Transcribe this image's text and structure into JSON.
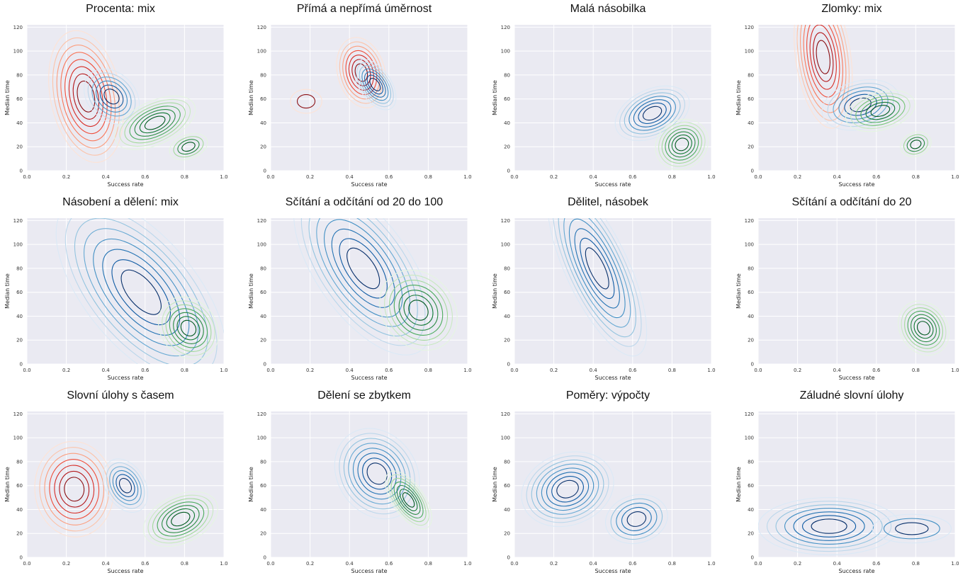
{
  "chart_data": [
    {
      "type": "contour",
      "title": "Procenta: mix",
      "xlabel": "Success rate",
      "ylabel": "Median time",
      "xlim": [
        0,
        1
      ],
      "ylim": [
        0,
        122
      ],
      "x_ticks": [
        "0.0",
        "0.2",
        "0.4",
        "0.6",
        "0.8",
        "1.0"
      ],
      "y_ticks": [
        "0",
        "20",
        "40",
        "60",
        "80",
        "100",
        "120"
      ],
      "grid": true,
      "series": [
        {
          "palette": "reds",
          "peaks": [
            {
              "x": 0.3,
              "y": 62,
              "sx": 0.09,
              "sy": 28,
              "rot": -12,
              "levels": 8
            }
          ]
        },
        {
          "palette": "blues",
          "peaks": [
            {
              "x": 0.43,
              "y": 62,
              "sx": 0.06,
              "sy": 13,
              "rot": -45,
              "levels": 6
            }
          ]
        },
        {
          "palette": "greens",
          "peaks": [
            {
              "x": 0.65,
              "y": 40,
              "sx": 0.11,
              "sy": 9,
              "rot": -25,
              "levels": 7
            },
            {
              "x": 0.82,
              "y": 20,
              "sx": 0.05,
              "sy": 5,
              "rot": -20,
              "levels": 4
            }
          ]
        }
      ]
    },
    {
      "type": "contour",
      "title": "Přímá a nepřímá úměrnost",
      "xlabel": "Success rate",
      "ylabel": "Median time",
      "xlim": [
        0,
        1
      ],
      "ylim": [
        0,
        122
      ],
      "x_ticks": [
        "0.0",
        "0.2",
        "0.4",
        "0.6",
        "0.8",
        "1.0"
      ],
      "y_ticks": [
        "0",
        "20",
        "40",
        "60",
        "80",
        "100",
        "120"
      ],
      "grid": true,
      "series": [
        {
          "palette": "reds",
          "peaks": [
            {
              "x": 0.46,
              "y": 82,
              "sx": 0.06,
              "sy": 15,
              "rot": -15,
              "levels": 7
            },
            {
              "x": 0.18,
              "y": 58,
              "sx": 0.04,
              "sy": 5,
              "rot": 0,
              "levels": 2
            }
          ]
        },
        {
          "palette": "blues",
          "peaks": [
            {
              "x": 0.53,
              "y": 72,
              "sx": 0.04,
              "sy": 12,
              "rot": -35,
              "levels": 7
            }
          ]
        }
      ]
    },
    {
      "type": "contour",
      "title": "Malá násobilka",
      "xlabel": "Success rate",
      "ylabel": "Median time",
      "xlim": [
        0,
        1
      ],
      "ylim": [
        0,
        122
      ],
      "x_ticks": [
        "0.0",
        "0.2",
        "0.4",
        "0.6",
        "0.8",
        "1.0"
      ],
      "y_ticks": [
        "0",
        "20",
        "40",
        "60",
        "80",
        "100",
        "120"
      ],
      "grid": true,
      "series": [
        {
          "palette": "blues",
          "peaks": [
            {
              "x": 0.7,
              "y": 48,
              "sx": 0.1,
              "sy": 10,
              "rot": -25,
              "levels": 7
            }
          ]
        },
        {
          "palette": "greens",
          "peaks": [
            {
              "x": 0.85,
              "y": 22,
              "sx": 0.07,
              "sy": 10,
              "rot": -35,
              "levels": 7
            }
          ]
        }
      ]
    },
    {
      "type": "contour",
      "title": "Zlomky: mix",
      "xlabel": "Success rate",
      "ylabel": "Median time",
      "xlim": [
        0,
        1
      ],
      "ylim": [
        0,
        122
      ],
      "x_ticks": [
        "0.0",
        "0.2",
        "0.4",
        "0.6",
        "0.8",
        "1.0"
      ],
      "y_ticks": [
        "0",
        "20",
        "40",
        "60",
        "80",
        "100",
        "120"
      ],
      "grid": true,
      "series": [
        {
          "palette": "reds",
          "peaks": [
            {
              "x": 0.33,
              "y": 95,
              "sx": 0.07,
              "sy": 30,
              "rot": -8,
              "levels": 8
            }
          ]
        },
        {
          "palette": "blues",
          "peaks": [
            {
              "x": 0.52,
              "y": 55,
              "sx": 0.1,
              "sy": 10,
              "rot": -15,
              "levels": 6
            }
          ]
        },
        {
          "palette": "greens",
          "peaks": [
            {
              "x": 0.62,
              "y": 50,
              "sx": 0.09,
              "sy": 8,
              "rot": -15,
              "levels": 6
            },
            {
              "x": 0.8,
              "y": 22,
              "sx": 0.04,
              "sy": 5,
              "rot": -20,
              "levels": 4
            }
          ]
        }
      ]
    },
    {
      "type": "contour",
      "title": "Násobení a dělení: mix",
      "xlabel": "Success rate",
      "ylabel": "Median time",
      "xlim": [
        0,
        1
      ],
      "ylim": [
        0,
        122
      ],
      "x_ticks": [
        "0.0",
        "0.2",
        "0.4",
        "0.6",
        "0.8",
        "1.0"
      ],
      "y_ticks": [
        "0",
        "20",
        "40",
        "60",
        "80",
        "100",
        "120"
      ],
      "grid": true,
      "series": [
        {
          "palette": "blues",
          "peaks": [
            {
              "x": 0.58,
              "y": 60,
              "sx": 0.14,
              "sy": 48,
              "rot": -40,
              "levels": 8
            }
          ]
        },
        {
          "palette": "greens",
          "peaks": [
            {
              "x": 0.82,
              "y": 30,
              "sx": 0.07,
              "sy": 14,
              "rot": -40,
              "levels": 7
            }
          ]
        }
      ]
    },
    {
      "type": "contour",
      "title": "Sčítání a odčítání od 20 do 100",
      "xlabel": "Success rate",
      "ylabel": "Median time",
      "xlim": [
        0,
        1
      ],
      "ylim": [
        0,
        122
      ],
      "x_ticks": [
        "0.0",
        "0.2",
        "0.4",
        "0.6",
        "0.8",
        "1.0"
      ],
      "y_ticks": [
        "0",
        "20",
        "40",
        "60",
        "80",
        "100",
        "120"
      ],
      "grid": true,
      "series": [
        {
          "palette": "blues",
          "peaks": [
            {
              "x": 0.47,
              "y": 80,
              "sx": 0.12,
              "sy": 42,
              "rot": -35,
              "levels": 8
            }
          ]
        },
        {
          "palette": "greens",
          "peaks": [
            {
              "x": 0.75,
              "y": 45,
              "sx": 0.09,
              "sy": 18,
              "rot": -40,
              "levels": 7
            }
          ]
        }
      ]
    },
    {
      "type": "contour",
      "title": "Dělitel, násobek",
      "xlabel": "Success rate",
      "ylabel": "Median time",
      "xlim": [
        0,
        1
      ],
      "ylim": [
        0,
        122
      ],
      "x_ticks": [
        "0.0",
        "0.2",
        "0.4",
        "0.6",
        "0.8",
        "1.0"
      ],
      "y_ticks": [
        "0",
        "20",
        "40",
        "60",
        "80",
        "100",
        "120"
      ],
      "grid": true,
      "series": [
        {
          "palette": "blues",
          "peaks": [
            {
              "x": 0.42,
              "y": 80,
              "sx": 0.08,
              "sy": 40,
              "rot": -25,
              "levels": 8
            }
          ]
        }
      ]
    },
    {
      "type": "contour",
      "title": "Sčítání a odčítání do 20",
      "xlabel": "Success rate",
      "ylabel": "Median time",
      "xlim": [
        0,
        1
      ],
      "ylim": [
        0,
        122
      ],
      "x_ticks": [
        "0.0",
        "0.2",
        "0.4",
        "0.6",
        "0.8",
        "1.0"
      ],
      "y_ticks": [
        "0",
        "20",
        "40",
        "60",
        "80",
        "100",
        "120"
      ],
      "grid": true,
      "series": [
        {
          "palette": "greens",
          "peaks": [
            {
              "x": 0.84,
              "y": 30,
              "sx": 0.06,
              "sy": 12,
              "rot": -35,
              "levels": 7
            }
          ]
        }
      ]
    },
    {
      "type": "contour",
      "title": "Slovní úlohy s časem",
      "xlabel": "Success rate",
      "ylabel": "Median time",
      "xlim": [
        0,
        1
      ],
      "ylim": [
        0,
        122
      ],
      "x_ticks": [
        "0.0",
        "0.2",
        "0.4",
        "0.6",
        "0.8",
        "1.0"
      ],
      "y_ticks": [
        "0",
        "20",
        "40",
        "60",
        "80",
        "100",
        "120"
      ],
      "grid": true,
      "series": [
        {
          "palette": "reds",
          "peaks": [
            {
              "x": 0.24,
              "y": 57,
              "sx": 0.1,
              "sy": 20,
              "rot": -5,
              "levels": 7
            }
          ]
        },
        {
          "palette": "blues",
          "peaks": [
            {
              "x": 0.5,
              "y": 60,
              "sx": 0.05,
              "sy": 12,
              "rot": -30,
              "levels": 6
            }
          ]
        },
        {
          "palette": "greens",
          "peaks": [
            {
              "x": 0.78,
              "y": 32,
              "sx": 0.1,
              "sy": 10,
              "rot": -25,
              "levels": 7
            }
          ]
        }
      ]
    },
    {
      "type": "contour",
      "title": "Dělení se zbytkem",
      "xlabel": "Success rate",
      "ylabel": "Median time",
      "xlim": [
        0,
        1
      ],
      "ylim": [
        0,
        122
      ],
      "x_ticks": [
        "0.0",
        "0.2",
        "0.4",
        "0.6",
        "0.8",
        "1.0"
      ],
      "y_ticks": [
        "0",
        "20",
        "40",
        "60",
        "80",
        "100",
        "120"
      ],
      "grid": true,
      "series": [
        {
          "palette": "blues",
          "peaks": [
            {
              "x": 0.54,
              "y": 70,
              "sx": 0.1,
              "sy": 20,
              "rot": -35,
              "levels": 8
            }
          ]
        },
        {
          "palette": "greens",
          "peaks": [
            {
              "x": 0.7,
              "y": 48,
              "sx": 0.04,
              "sy": 14,
              "rot": -35,
              "levels": 7
            }
          ]
        }
      ]
    },
    {
      "type": "contour",
      "title": "Poměry: výpočty",
      "xlabel": "Success rate",
      "ylabel": "Median time",
      "xlim": [
        0,
        1
      ],
      "ylim": [
        0,
        122
      ],
      "x_ticks": [
        "0.0",
        "0.2",
        "0.4",
        "0.6",
        "0.8",
        "1.0"
      ],
      "y_ticks": [
        "0",
        "20",
        "40",
        "60",
        "80",
        "100",
        "120"
      ],
      "grid": true,
      "series": [
        {
          "palette": "blues",
          "peaks": [
            {
              "x": 0.27,
              "y": 57,
              "sx": 0.12,
              "sy": 15,
              "rot": -20,
              "levels": 8
            },
            {
              "x": 0.62,
              "y": 32,
              "sx": 0.08,
              "sy": 10,
              "rot": -15,
              "levels": 5
            }
          ]
        }
      ]
    },
    {
      "type": "contour",
      "title": "Záludné slovní úlohy",
      "xlabel": "Success rate",
      "ylabel": "Median time",
      "xlim": [
        0,
        1
      ],
      "ylim": [
        0,
        122
      ],
      "x_ticks": [
        "0.0",
        "0.2",
        "0.4",
        "0.6",
        "0.8",
        "1.0"
      ],
      "y_ticks": [
        "0",
        "20",
        "40",
        "60",
        "80",
        "100",
        "120"
      ],
      "grid": true,
      "series": [
        {
          "palette": "blues",
          "peaks": [
            {
              "x": 0.36,
              "y": 26,
              "sx": 0.18,
              "sy": 12,
              "rot": 0,
              "levels": 7
            },
            {
              "x": 0.78,
              "y": 24,
              "sx": 0.1,
              "sy": 6,
              "rot": 0,
              "levels": 3
            }
          ]
        }
      ]
    }
  ],
  "palettes": {
    "reds": [
      "#fde3d6",
      "#fcc3a9",
      "#fc9e7e",
      "#f9775a",
      "#ef4d3a",
      "#d62b25",
      "#b3171b",
      "#8b0f13"
    ],
    "blues": [
      "#dbe9f6",
      "#bcd7eb",
      "#94c4df",
      "#67a9d3",
      "#4390c4",
      "#2473b3",
      "#0f5aa3",
      "#08306b"
    ],
    "greens": [
      "#e5f5e1",
      "#c8e9c1",
      "#a2d99b",
      "#76c477",
      "#4bab5d",
      "#2c8c45",
      "#117833",
      "#00591f"
    ]
  },
  "plot_background": "#eaeaf2"
}
